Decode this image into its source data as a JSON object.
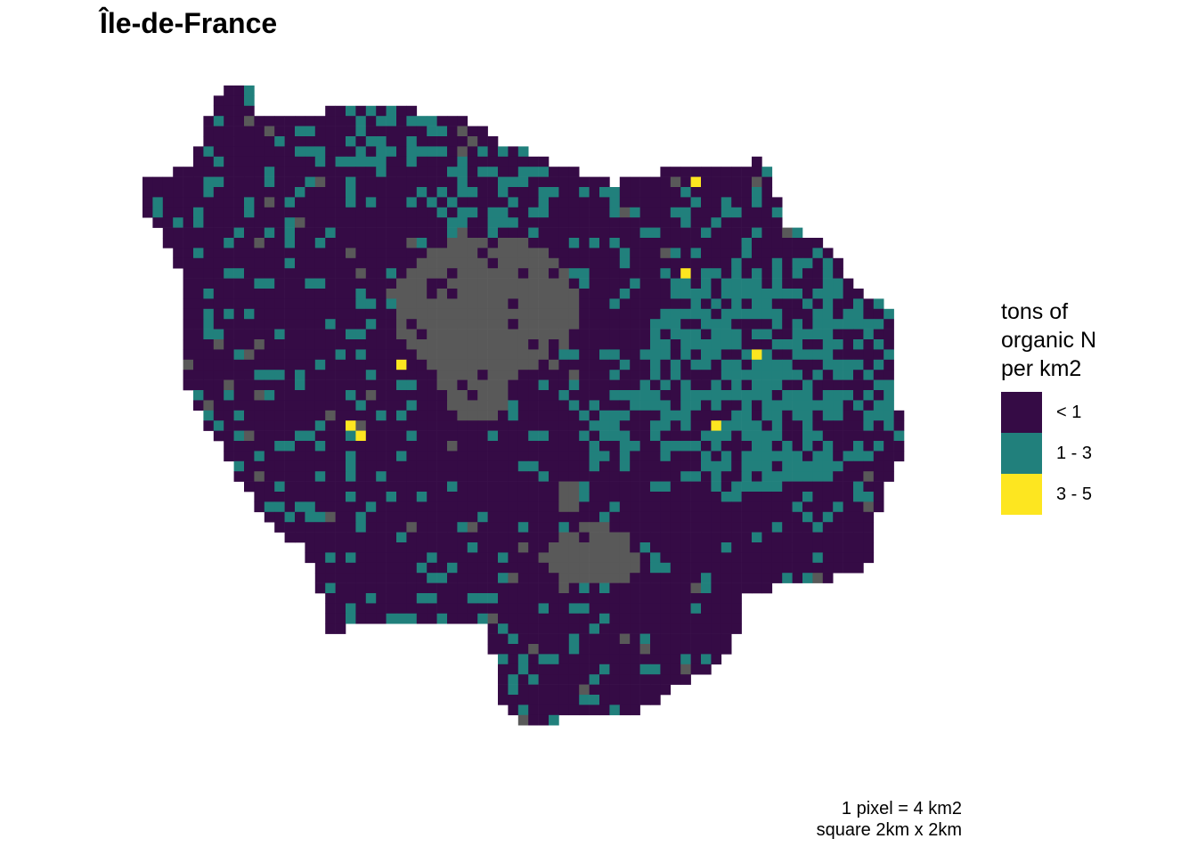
{
  "title": "Île-de-France",
  "legend": {
    "title_lines": [
      "tons of",
      "organic N",
      "per km2"
    ],
    "items": [
      {
        "label": "< 1",
        "color": "#350b45"
      },
      {
        "label": "1 - 3",
        "color": "#21807c"
      },
      {
        "label": "3 - 5",
        "color": "#fde620"
      }
    ],
    "no_data_color": "#595959"
  },
  "caption": {
    "lines": [
      "1 pixel = 4 km2",
      "square 2km x 2km"
    ]
  }
}
